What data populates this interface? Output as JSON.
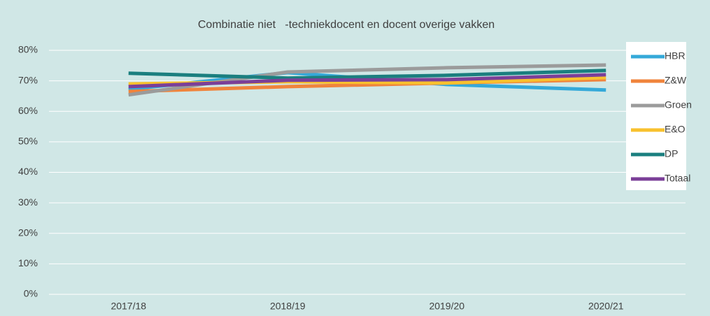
{
  "chart_data": {
    "type": "line",
    "title": "Combinatie niet   -techniekdocent en docent overige vakken",
    "categories": [
      "2017/18",
      "2018/19",
      "2019/20",
      "2020/21"
    ],
    "series": [
      {
        "name": "HBR",
        "color": "#35a9d9",
        "values": [
          67.2,
          72.7,
          68.8,
          67.0
        ]
      },
      {
        "name": "Z&W",
        "color": "#f0843c",
        "values": [
          66.5,
          68.1,
          69.3,
          70.4
        ]
      },
      {
        "name": "Groen",
        "color": "#9b9b9b",
        "values": [
          65.4,
          72.9,
          74.3,
          75.2
        ]
      },
      {
        "name": "E&O",
        "color": "#f8c12e",
        "values": [
          69.0,
          69.7,
          69.3,
          71.1
        ]
      },
      {
        "name": "DP",
        "color": "#1b7f7f",
        "values": [
          72.5,
          70.9,
          71.8,
          73.4
        ]
      },
      {
        "name": "Totaal",
        "color": "#7b3f98",
        "values": [
          68.1,
          70.2,
          70.4,
          72.0
        ]
      }
    ],
    "ylim": [
      0,
      80
    ],
    "yticks": [
      {
        "value": 0,
        "label": "0%"
      },
      {
        "value": 10,
        "label": "10%"
      },
      {
        "value": 20,
        "label": "20%"
      },
      {
        "value": 30,
        "label": "30%"
      },
      {
        "value": 40,
        "label": "40%"
      },
      {
        "value": 50,
        "label": "50%"
      },
      {
        "value": 60,
        "label": "60%"
      },
      {
        "value": 70,
        "label": "70%"
      },
      {
        "value": 80,
        "label": "80%"
      }
    ],
    "grid": true,
    "legend": "right"
  }
}
